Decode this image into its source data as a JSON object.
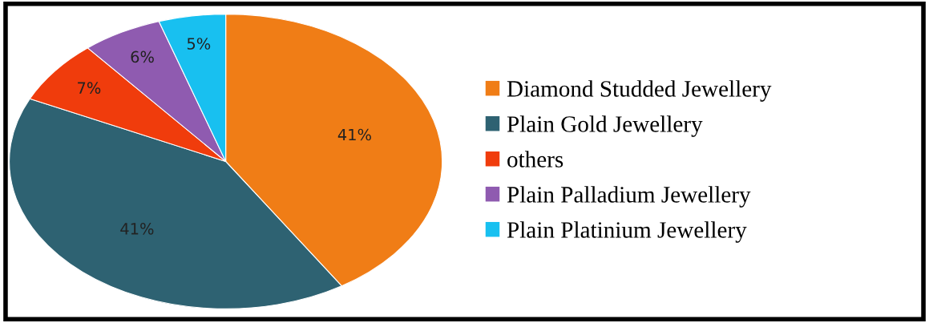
{
  "chart_data": {
    "type": "pie",
    "categories": [
      "Diamond Studded Jewellery",
      "Plain Gold Jewellery",
      "others",
      "Plain Palladium Jewellery",
      "Plain Platinium Jewellery"
    ],
    "values": [
      41,
      41,
      7,
      6,
      5
    ],
    "value_labels": [
      "41%",
      "41%",
      "7%",
      "6%",
      "5%"
    ],
    "colors": [
      "#f07d16",
      "#2e6272",
      "#f03c0c",
      "#8f5bb0",
      "#18c0f0"
    ],
    "legend": "right"
  }
}
